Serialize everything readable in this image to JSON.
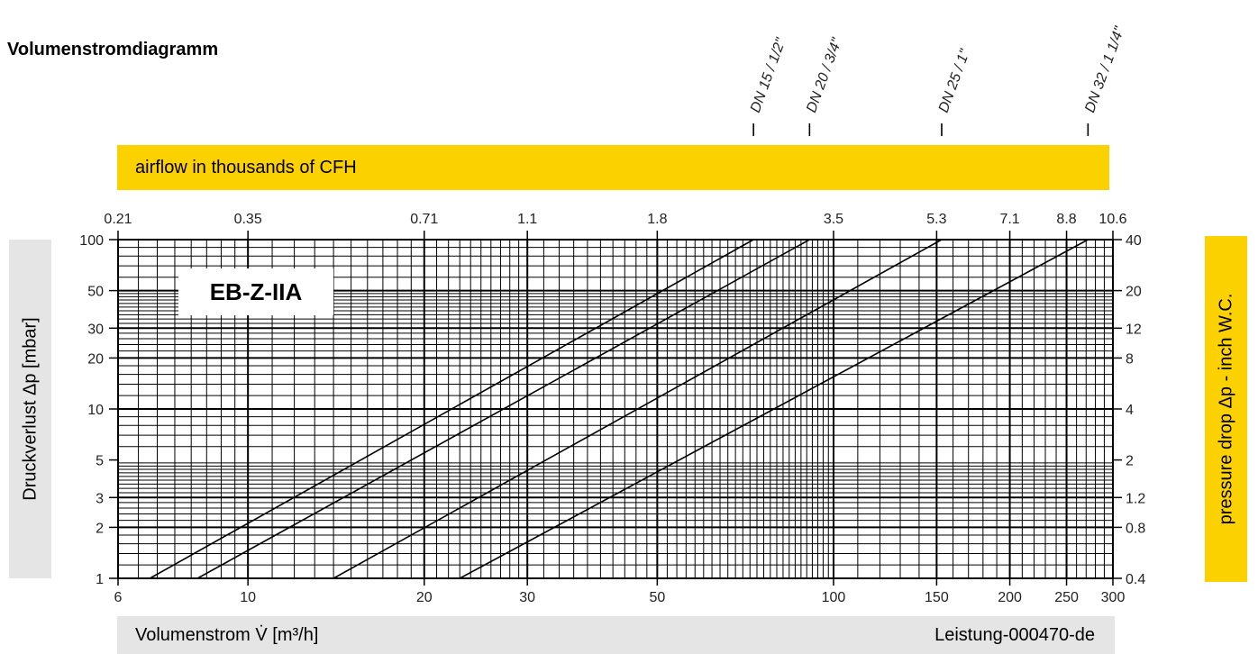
{
  "title": "Volumenstromdiagramm",
  "top_band_label": "airflow in thousands of CFH",
  "left_axis_title": "Druckverlust Δp [mbar]",
  "right_axis_title": "pressure  drop Δp - inch W.C.",
  "bottom_axis_title": "Volumenstrom V̇ [m³/h]",
  "document_id": "Leistung-000470-de",
  "chart_name": "EB-Z-IIA",
  "colors": {
    "band_yellow": "#fcd100",
    "band_grey": "#e5e5e5",
    "line": "#000000"
  },
  "chart_data": {
    "type": "line",
    "title": "Volumenstromdiagramm",
    "xlabel": "Volumenstrom V̇ [m³/h]",
    "ylabel": "Druckverlust Δp [mbar]",
    "x_scale": "log",
    "y_scale": "log",
    "xlim": [
      6,
      300
    ],
    "ylim": [
      1,
      100
    ],
    "grid": true,
    "x_ticks": [
      6,
      10,
      20,
      30,
      50,
      100,
      150,
      200,
      250,
      300
    ],
    "y_ticks": [
      1,
      2,
      3,
      5,
      10,
      20,
      30,
      50,
      100
    ],
    "top_axis": {
      "label": "airflow in thousands of CFH",
      "ticks": [
        {
          "label": "0.21",
          "x": 6
        },
        {
          "label": "0.35",
          "x": 10
        },
        {
          "label": "0.71",
          "x": 20
        },
        {
          "label": "1.1",
          "x": 30
        },
        {
          "label": "1.8",
          "x": 50
        },
        {
          "label": "3.5",
          "x": 100
        },
        {
          "label": "5.3",
          "x": 150
        },
        {
          "label": "7.1",
          "x": 200
        },
        {
          "label": "8.8",
          "x": 250
        },
        {
          "label": "10.6",
          "x": 300
        }
      ]
    },
    "right_axis": {
      "label": "pressure  drop Δp - inch W.C.",
      "ticks": [
        {
          "label": "40",
          "y": 100
        },
        {
          "label": "20",
          "y": 50
        },
        {
          "label": "12",
          "y": 30
        },
        {
          "label": "8",
          "y": 20
        },
        {
          "label": "4",
          "y": 10
        },
        {
          "label": "2",
          "y": 5
        },
        {
          "label": "1.2",
          "y": 3
        },
        {
          "label": "0.8",
          "y": 2
        },
        {
          "label": "0.4",
          "y": 1
        }
      ]
    },
    "series": [
      {
        "name": "DN 15 / 1/2\"",
        "x": [
          6.8,
          73
        ],
        "y": [
          1,
          100
        ]
      },
      {
        "name": "DN 20 / 3/4\"",
        "x": [
          8.2,
          91
        ],
        "y": [
          1,
          100
        ]
      },
      {
        "name": "DN 25 / 1\"",
        "x": [
          14,
          153
        ],
        "y": [
          1,
          100
        ]
      },
      {
        "name": "DN 32 / 1 1/4\"",
        "x": [
          23,
          272
        ],
        "y": [
          1,
          100
        ]
      }
    ]
  }
}
